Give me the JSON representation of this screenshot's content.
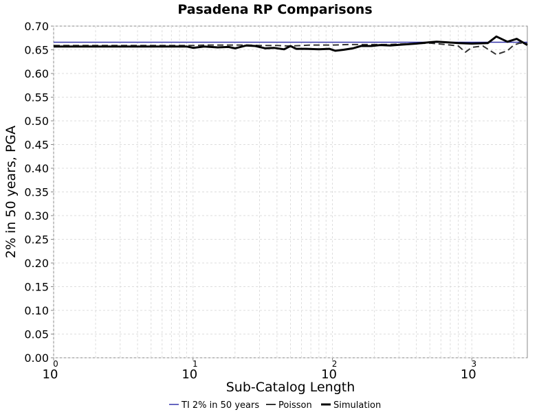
{
  "chart_data": {
    "type": "line",
    "title": "Pasadena RP Comparisons",
    "xlabel": "Sub-Catalog Length",
    "ylabel": "2% in 50 years, PGA",
    "x_scale": "log",
    "x_range": [
      1,
      2500
    ],
    "ylim": [
      0,
      0.7
    ],
    "y_ticks": [
      "0.00",
      "0.05",
      "0.10",
      "0.15",
      "0.20",
      "0.25",
      "0.30",
      "0.35",
      "0.40",
      "0.45",
      "0.50",
      "0.55",
      "0.60",
      "0.65",
      "0.70"
    ],
    "x_ticks": [
      {
        "base": "10",
        "exp": "0"
      },
      {
        "base": "10",
        "exp": "1"
      },
      {
        "base": "10",
        "exp": "2"
      },
      {
        "base": "10",
        "exp": "3"
      }
    ],
    "grid": true,
    "legend_position": "bottom",
    "series": [
      {
        "name": "TI 2% in 50 years",
        "color": "#3333aa",
        "style": "solid",
        "x": [
          1,
          2500
        ],
        "y": [
          0.666,
          0.666
        ]
      },
      {
        "name": "Poisson",
        "color": "#333333",
        "style": "dashed",
        "x": [
          1,
          1.5,
          2,
          3,
          4,
          5,
          7,
          10,
          12,
          15,
          20,
          25,
          30,
          40,
          50,
          60,
          70,
          80,
          100,
          130,
          160,
          200,
          250,
          300,
          400,
          500,
          600,
          700,
          800,
          900,
          1000,
          1200,
          1500,
          1800,
          2000,
          2200,
          2500
        ],
        "y": [
          0.659,
          0.659,
          0.659,
          0.659,
          0.659,
          0.659,
          0.659,
          0.659,
          0.66,
          0.66,
          0.66,
          0.66,
          0.659,
          0.659,
          0.658,
          0.659,
          0.66,
          0.66,
          0.66,
          0.661,
          0.661,
          0.661,
          0.661,
          0.662,
          0.663,
          0.664,
          0.662,
          0.66,
          0.658,
          0.645,
          0.655,
          0.658,
          0.64,
          0.648,
          0.66,
          0.664,
          0.663
        ]
      },
      {
        "name": "Simulation",
        "color": "#000000",
        "style": "solid",
        "x": [
          1,
          1.5,
          2,
          3,
          4,
          5,
          7,
          9,
          10,
          12,
          15,
          18,
          20,
          24,
          28,
          33,
          38,
          45,
          50,
          55,
          65,
          80,
          95,
          105,
          120,
          140,
          160,
          190,
          220,
          260,
          320,
          400,
          500,
          560,
          650,
          800,
          1000,
          1300,
          1500,
          1800,
          2100,
          2500
        ],
        "y": [
          0.657,
          0.657,
          0.657,
          0.657,
          0.657,
          0.657,
          0.657,
          0.657,
          0.654,
          0.657,
          0.655,
          0.656,
          0.653,
          0.659,
          0.658,
          0.653,
          0.654,
          0.651,
          0.658,
          0.652,
          0.652,
          0.651,
          0.652,
          0.648,
          0.65,
          0.653,
          0.658,
          0.658,
          0.66,
          0.659,
          0.661,
          0.663,
          0.666,
          0.667,
          0.666,
          0.664,
          0.663,
          0.664,
          0.678,
          0.667,
          0.673,
          0.66
        ]
      }
    ]
  }
}
